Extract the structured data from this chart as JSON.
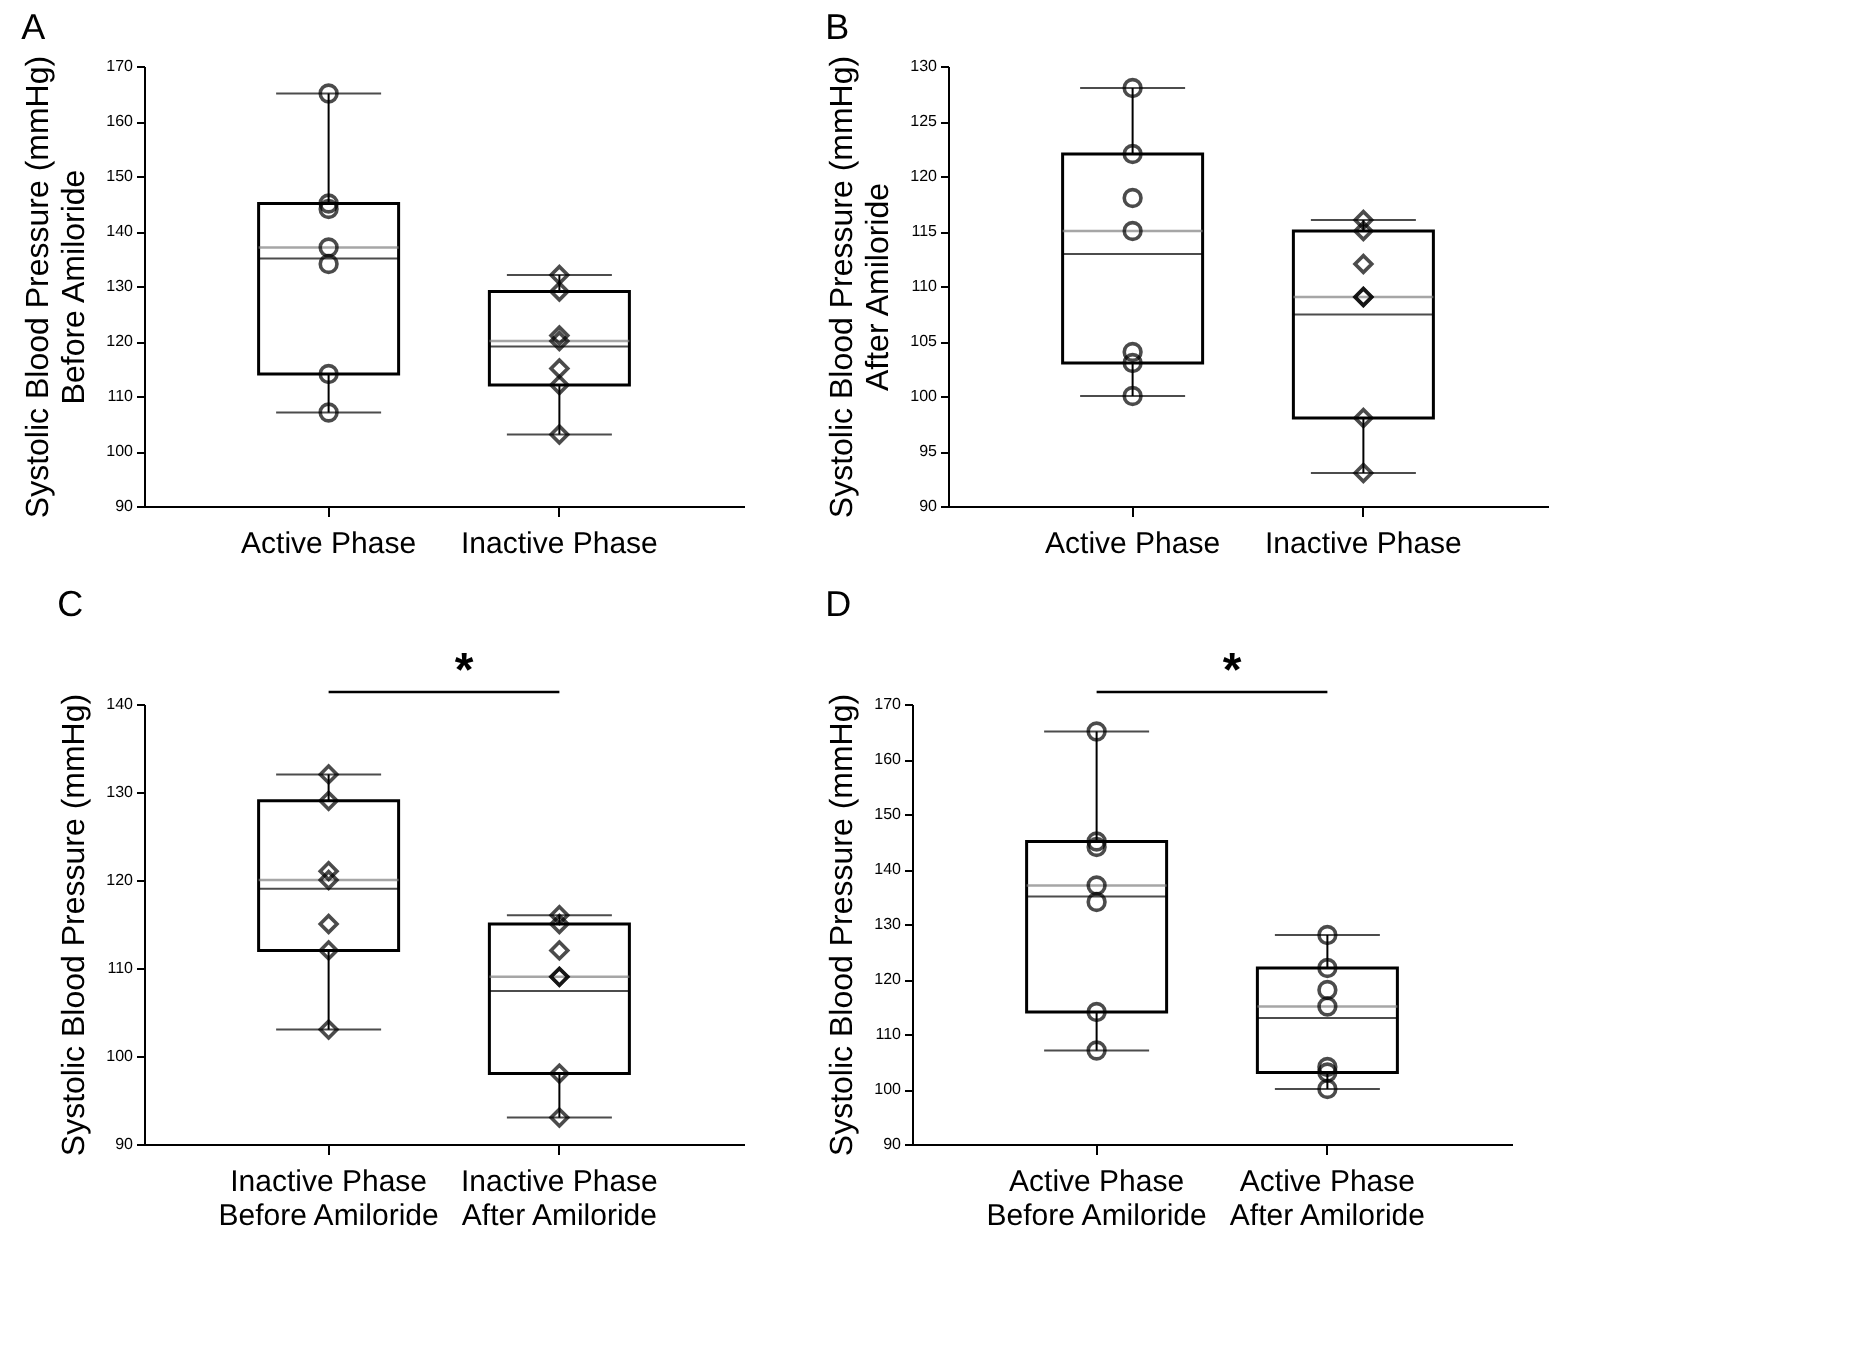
{
  "chart_data": [
    {
      "type": "box",
      "title": "A",
      "ylabel": "Systolic Blood Pressure (mmHg)\nBefore Amiloride",
      "categories": [
        "Active Phase",
        "Inactive Phase"
      ],
      "ylim": [
        90,
        170
      ],
      "yticks": [
        90,
        100,
        110,
        120,
        130,
        140,
        150,
        160,
        170
      ],
      "grid": false,
      "series": [
        {
          "type": "box",
          "color": "#000000",
          "boxes": [
            {
              "low": 107,
              "q1": 114,
              "median": 137,
              "q3": 145,
              "high": 165,
              "mean": 135
            },
            {
              "low": 103,
              "q1": 112,
              "median": 120,
              "q3": 129,
              "high": 132,
              "mean": 119
            }
          ]
        },
        {
          "type": "scatter",
          "color": "#000000",
          "marker": "circle",
          "x": [
            "Active Phase",
            "Active Phase",
            "Active Phase",
            "Active Phase",
            "Active Phase",
            "Active Phase",
            "Active Phase"
          ],
          "values": [
            165,
            145,
            144,
            137,
            134,
            114,
            107
          ]
        },
        {
          "type": "scatter",
          "color": "#000000",
          "marker": "diamond",
          "x": [
            "Inactive Phase",
            "Inactive Phase",
            "Inactive Phase",
            "Inactive Phase",
            "Inactive Phase",
            "Inactive Phase",
            "Inactive Phase"
          ],
          "values": [
            132,
            129,
            121,
            120,
            115,
            112,
            103
          ]
        }
      ]
    },
    {
      "type": "box",
      "title": "B",
      "ylabel": "Systolic Blood Pressure (mmHg)\nAfter Amiloride",
      "categories": [
        "Active Phase",
        "Inactive Phase"
      ],
      "ylim": [
        90,
        130
      ],
      "yticks": [
        90,
        95,
        100,
        105,
        110,
        115,
        120,
        125,
        130
      ],
      "grid": false,
      "series": [
        {
          "type": "box",
          "color": "#000000",
          "boxes": [
            {
              "low": 100,
              "q1": 103,
              "median": 115,
              "q3": 122,
              "high": 128,
              "mean": 112.9
            },
            {
              "low": 93,
              "q1": 98,
              "median": 109,
              "q3": 115,
              "high": 116,
              "mean": 107.4
            }
          ]
        },
        {
          "type": "scatter",
          "color": "#000000",
          "marker": "circle",
          "x": [
            "Active Phase",
            "Active Phase",
            "Active Phase",
            "Active Phase",
            "Active Phase",
            "Active Phase",
            "Active Phase"
          ],
          "values": [
            128,
            122,
            118,
            115,
            104,
            103,
            100
          ]
        },
        {
          "type": "scatter",
          "color": "#000000",
          "marker": "diamond",
          "x": [
            "Inactive Phase",
            "Inactive Phase",
            "Inactive Phase",
            "Inactive Phase",
            "Inactive Phase",
            "Inactive Phase",
            "Inactive Phase"
          ],
          "values": [
            116,
            115,
            112,
            109,
            109,
            98,
            93
          ]
        }
      ]
    },
    {
      "type": "box",
      "title": "C",
      "ylabel": "Systolic Blood Pressure (mmHg)",
      "categories": [
        "Inactive Phase\nBefore Amiloride",
        "Inactive Phase\nAfter Amiloride"
      ],
      "ylim": [
        90,
        140
      ],
      "yticks": [
        90,
        100,
        110,
        120,
        130,
        140
      ],
      "grid": false,
      "annotations": [
        "*"
      ],
      "series": [
        {
          "type": "box",
          "color": "#000000",
          "boxes": [
            {
              "low": 103,
              "q1": 112,
              "median": 120,
              "q3": 129,
              "high": 132,
              "mean": 119
            },
            {
              "low": 93,
              "q1": 98,
              "median": 109,
              "q3": 115,
              "high": 116,
              "mean": 107.4
            }
          ]
        },
        {
          "type": "scatter",
          "color": "#000000",
          "marker": "diamond",
          "x": [
            "Inactive Phase\nBefore Amiloride",
            "Inactive Phase\nBefore Amiloride",
            "Inactive Phase\nBefore Amiloride",
            "Inactive Phase\nBefore Amiloride",
            "Inactive Phase\nBefore Amiloride",
            "Inactive Phase\nBefore Amiloride",
            "Inactive Phase\nBefore Amiloride"
          ],
          "values": [
            132,
            129,
            121,
            120,
            115,
            112,
            103
          ]
        },
        {
          "type": "scatter",
          "color": "#000000",
          "marker": "diamond",
          "x": [
            "Inactive Phase\nAfter Amiloride",
            "Inactive Phase\nAfter Amiloride",
            "Inactive Phase\nAfter Amiloride",
            "Inactive Phase\nAfter Amiloride",
            "Inactive Phase\nAfter Amiloride",
            "Inactive Phase\nAfter Amiloride",
            "Inactive Phase\nAfter Amiloride"
          ],
          "values": [
            116,
            115,
            112,
            109,
            109,
            98,
            93
          ]
        }
      ]
    },
    {
      "type": "box",
      "title": "D",
      "ylabel": "Systolic Blood Pressure (mmHg)",
      "categories": [
        "Active Phase\nBefore Amiloride",
        "Active Phase\nAfter Amiloride"
      ],
      "ylim": [
        90,
        170
      ],
      "yticks": [
        90,
        100,
        110,
        120,
        130,
        140,
        150,
        160,
        170
      ],
      "grid": false,
      "annotations": [
        "*"
      ],
      "series": [
        {
          "type": "box",
          "color": "#000000",
          "boxes": [
            {
              "low": 107,
              "q1": 114,
              "median": 137,
              "q3": 145,
              "high": 165,
              "mean": 135
            },
            {
              "low": 100,
              "q1": 103,
              "median": 115,
              "q3": 122,
              "high": 128,
              "mean": 112.9
            }
          ]
        },
        {
          "type": "scatter",
          "color": "#000000",
          "marker": "circle",
          "x": [
            "Active Phase\nBefore Amiloride",
            "Active Phase\nBefore Amiloride",
            "Active Phase\nBefore Amiloride",
            "Active Phase\nBefore Amiloride",
            "Active Phase\nBefore Amiloride",
            "Active Phase\nBefore Amiloride",
            "Active Phase\nBefore Amiloride"
          ],
          "values": [
            165,
            145,
            144,
            137,
            134,
            114,
            107
          ]
        },
        {
          "type": "scatter",
          "color": "#000000",
          "marker": "circle",
          "x": [
            "Active Phase\nAfter Amiloride",
            "Active Phase\nAfter Amiloride",
            "Active Phase\nAfter Amiloride",
            "Active Phase\nAfter Amiloride",
            "Active Phase\nAfter Amiloride",
            "Active Phase\nAfter Amiloride",
            "Active Phase\nAfter Amiloride"
          ],
          "values": [
            128,
            122,
            118,
            115,
            104,
            103,
            100
          ]
        }
      ]
    }
  ]
}
